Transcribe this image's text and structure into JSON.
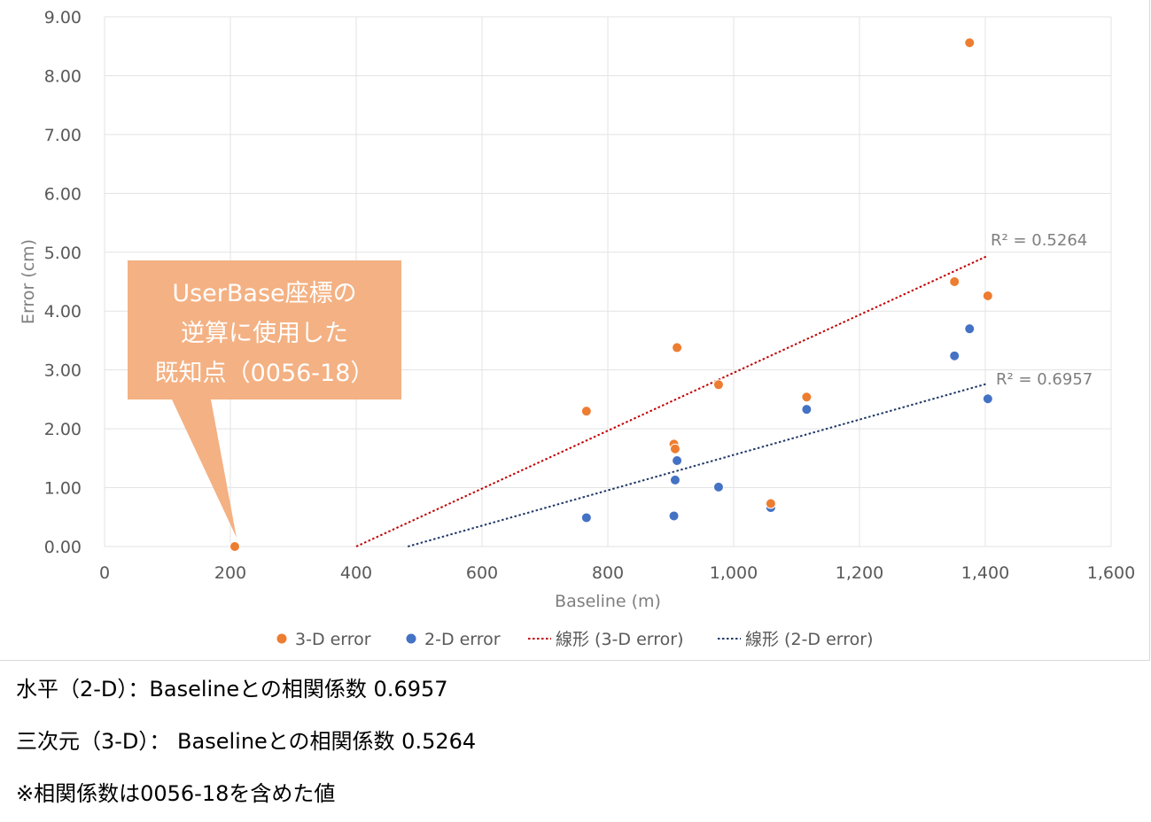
{
  "chart_data": {
    "type": "scatter",
    "xlabel": "Baseline (m)",
    "ylabel": "Error (cm)",
    "xlim": [
      0,
      1600
    ],
    "ylim": [
      0,
      9
    ],
    "x_ticks": [
      0,
      200,
      400,
      600,
      800,
      1000,
      1200,
      1400,
      1600
    ],
    "x_tick_labels": [
      "0",
      "200",
      "400",
      "600",
      "800",
      "1,000",
      "1,200",
      "1,400",
      "1,600"
    ],
    "y_ticks": [
      0,
      1,
      2,
      3,
      4,
      5,
      6,
      7,
      8,
      9
    ],
    "y_tick_labels": [
      "0.00",
      "1.00",
      "2.00",
      "3.00",
      "4.00",
      "5.00",
      "6.00",
      "7.00",
      "8.00",
      "9.00"
    ],
    "grid": true,
    "legend_placement": "bottom",
    "series": [
      {
        "name": "3-D error",
        "color": "#ed7d31",
        "points": [
          [
            207,
            0.0
          ],
          [
            766,
            2.3
          ],
          [
            905,
            1.74
          ],
          [
            907,
            1.66
          ],
          [
            910,
            3.38
          ],
          [
            976,
            2.75
          ],
          [
            1059,
            0.73
          ],
          [
            1116,
            2.54
          ],
          [
            1351,
            4.5
          ],
          [
            1375,
            8.56
          ],
          [
            1404,
            4.26
          ]
        ]
      },
      {
        "name": "2-D error",
        "color": "#4472c4",
        "points": [
          [
            207,
            0.0
          ],
          [
            766,
            0.49
          ],
          [
            905,
            0.52
          ],
          [
            907,
            1.13
          ],
          [
            910,
            1.46
          ],
          [
            976,
            1.01
          ],
          [
            1059,
            0.66
          ],
          [
            1116,
            2.33
          ],
          [
            1351,
            3.24
          ],
          [
            1375,
            3.7
          ],
          [
            1404,
            2.51
          ]
        ]
      }
    ],
    "trendlines": [
      {
        "name": "線形 (3-D error)",
        "color": "#c00000",
        "x": [
          400,
          1404
        ],
        "y": [
          0.0,
          4.94
        ],
        "r2_label": "R² = 0.5264"
      },
      {
        "name": "線形 (2-D error)",
        "color": "#1f3864",
        "x": [
          482,
          1404
        ],
        "y": [
          0.0,
          2.77
        ],
        "r2_label": "R² = 0.6957"
      }
    ],
    "callout": {
      "lines": [
        "UserBase座標の",
        "逆算に使用した",
        "既知点（0056-18）"
      ],
      "color": "#f4b183",
      "target": [
        207,
        0.0
      ]
    }
  },
  "notes": [
    "水平（2-D）：Baselineとの相関係数 0.6957",
    "三次元（3-D）： Baselineとの相関係数 0.5264",
    "※相関係数は0056-18を含めた値"
  ]
}
